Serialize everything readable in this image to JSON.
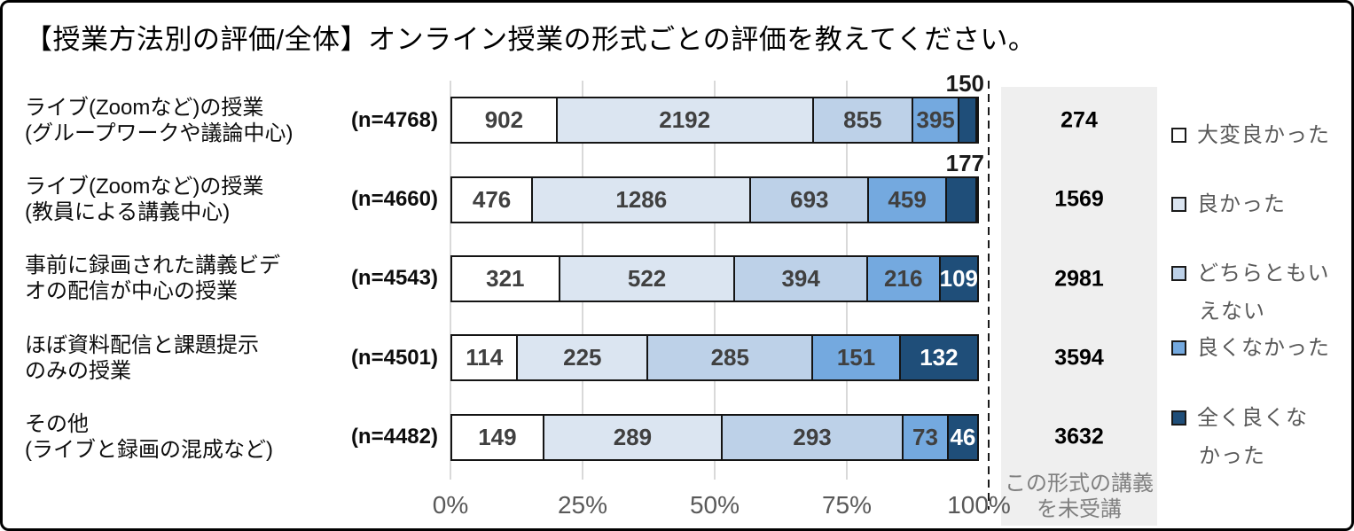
{
  "title": "【授業方法別の評価/全体】オンライン授業の形式ごとの評価を教えてください。",
  "colors": {
    "series": [
      "#FFFFFF",
      "#DBE5F1",
      "#BDD1E8",
      "#74A9DF",
      "#1F4E79"
    ],
    "segment_border": "#141414",
    "grid_line": "#D9D9D9",
    "axis_text": "#595959",
    "legend_text": "#595959",
    "not_attended_bg": "#EFEFEF",
    "bar_value_text": "#404040",
    "bar_value_text_on_dark": "#FFFFFF"
  },
  "chart_data": {
    "type": "bar",
    "subtype": "horizontal-100pct-stacked",
    "title": "【授業方法別の評価/全体】オンライン授業の形式ごとの評価を教えてください。",
    "series_labels": [
      "大変良かった",
      "良かった",
      "どちらともいえない",
      "良くなかった",
      "全く良くなかった"
    ],
    "x_ticks": [
      "0%",
      "25%",
      "50%",
      "75%",
      "100%"
    ],
    "xlim": [
      0,
      100
    ],
    "grid": true,
    "legend_position": "right",
    "rows": [
      {
        "label_lines": [
          "ライブ(Zoomなど)の授業",
          "(グループワークや議論中心)"
        ],
        "n_label": "(n=4768)",
        "values": [
          902,
          2192,
          855,
          395,
          150
        ],
        "not_attended": 274,
        "last_label_above": true
      },
      {
        "label_lines": [
          "ライブ(Zoomなど)の授業",
          "(教員による講義中心)"
        ],
        "n_label": "(n=4660)",
        "values": [
          476,
          1286,
          693,
          459,
          177
        ],
        "not_attended": 1569,
        "last_label_above": true
      },
      {
        "label_lines": [
          "事前に録画された講義ビデ",
          "オの配信が中心の授業"
        ],
        "n_label": "(n=4543)",
        "values": [
          321,
          522,
          394,
          216,
          109
        ],
        "not_attended": 2981,
        "last_label_above": false
      },
      {
        "label_lines": [
          "ほぼ資料配信と課題提示",
          "のみの授業"
        ],
        "n_label": "(n=4501)",
        "values": [
          114,
          225,
          285,
          151,
          132
        ],
        "not_attended": 3594,
        "last_label_above": false
      },
      {
        "label_lines": [
          "その他",
          "(ライブと録画の混成など)"
        ],
        "n_label": "(n=4482)",
        "values": [
          149,
          289,
          293,
          73,
          46
        ],
        "not_attended": 3632,
        "last_label_above": false
      }
    ],
    "not_attended_caption_lines": [
      "この形式の講義",
      "を未受講"
    ]
  },
  "legend": {
    "items": [
      {
        "label_lines": [
          "大変良かった"
        ],
        "color": "#FFFFFF"
      },
      {
        "label_lines": [
          "良かった"
        ],
        "color": "#DBE5F1"
      },
      {
        "label_lines": [
          "どちらともい",
          "えない"
        ],
        "color": "#BDD1E8"
      },
      {
        "label_lines": [
          "良くなかった"
        ],
        "color": "#74A9DF"
      },
      {
        "label_lines": [
          "全く良くな",
          "かった"
        ],
        "color": "#1F4E79"
      }
    ]
  }
}
